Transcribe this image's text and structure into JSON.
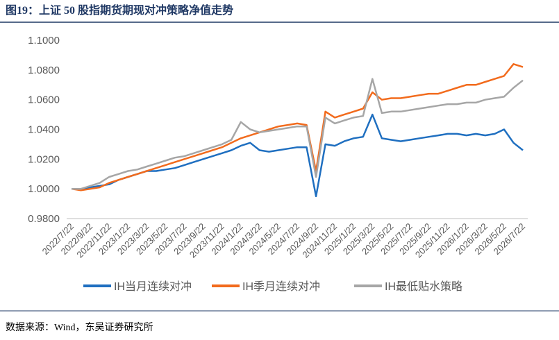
{
  "chart_data": {
    "type": "line",
    "title": "图19：上证 50 股指期货期现对冲策略净值走势",
    "source": "数据来源：Wind，东吴证券研究所",
    "categories": [
      "2022/7/22",
      null,
      "2022/9/22",
      null,
      "2022/11/22",
      null,
      "2023/1/22",
      null,
      "2023/3/22",
      null,
      "2023/5/22",
      null,
      "2023/7/22",
      null,
      "2023/9/22",
      null,
      "2023/11/22",
      null,
      "2024/1/22",
      null,
      "2024/3/22",
      null,
      "2024/5/22",
      null,
      "2024/7/22",
      null,
      "2024/9/22",
      null,
      "2024/11/22",
      null,
      "2025/1/22",
      null,
      "2025/3/22",
      null,
      "2025/5/22",
      null,
      "2025/7/22",
      null,
      "2025/9/22",
      null,
      "2025/11/22",
      null,
      "2026/1/22",
      null,
      "2026/3/22",
      null,
      "2026/5/22",
      null,
      "2026/7/22"
    ],
    "series": [
      {
        "name": "IH当月连续对冲",
        "color": "#1f6fc0",
        "values": [
          1.0,
          1.0,
          1.001,
          1.002,
          1.003,
          1.006,
          1.008,
          1.01,
          1.012,
          1.012,
          1.013,
          1.014,
          1.016,
          1.018,
          1.02,
          1.022,
          1.024,
          1.026,
          1.029,
          1.031,
          1.026,
          1.025,
          1.026,
          1.027,
          1.028,
          1.028,
          0.995,
          1.03,
          1.029,
          1.032,
          1.034,
          1.035,
          1.05,
          1.034,
          1.033,
          1.032,
          1.033,
          1.034,
          1.035,
          1.036,
          1.037,
          1.037,
          1.036,
          1.037,
          1.036,
          1.037,
          1.04,
          1.031,
          1.026
        ]
      },
      {
        "name": "IH季月连续对冲",
        "color": "#f26b1d",
        "values": [
          1.0,
          0.999,
          1.0,
          1.001,
          1.004,
          1.006,
          1.008,
          1.01,
          1.012,
          1.014,
          1.016,
          1.018,
          1.02,
          1.022,
          1.024,
          1.026,
          1.028,
          1.031,
          1.034,
          1.036,
          1.038,
          1.04,
          1.042,
          1.043,
          1.044,
          1.043,
          1.012,
          1.052,
          1.048,
          1.05,
          1.052,
          1.054,
          1.065,
          1.06,
          1.061,
          1.061,
          1.062,
          1.063,
          1.064,
          1.064,
          1.066,
          1.068,
          1.07,
          1.07,
          1.072,
          1.074,
          1.076,
          1.084,
          1.082
        ]
      },
      {
        "name": "IH最低贴水策略",
        "color": "#a6a6a6",
        "values": [
          1.0,
          1.0,
          1.002,
          1.004,
          1.008,
          1.01,
          1.012,
          1.013,
          1.015,
          1.017,
          1.019,
          1.021,
          1.022,
          1.024,
          1.026,
          1.028,
          1.03,
          1.033,
          1.045,
          1.04,
          1.038,
          1.039,
          1.04,
          1.041,
          1.042,
          1.042,
          1.008,
          1.048,
          1.044,
          1.046,
          1.048,
          1.049,
          1.074,
          1.051,
          1.052,
          1.052,
          1.053,
          1.054,
          1.055,
          1.056,
          1.057,
          1.057,
          1.058,
          1.058,
          1.06,
          1.061,
          1.062,
          1.068,
          1.073
        ]
      }
    ],
    "ylim": [
      0.98,
      1.1
    ],
    "yticks": [
      {
        "value": 0.98,
        "label": "0.9800"
      },
      {
        "value": 1.0,
        "label": "1.0000"
      },
      {
        "value": 1.02,
        "label": "1.0200"
      },
      {
        "value": 1.04,
        "label": "1.0400"
      },
      {
        "value": 1.06,
        "label": "1.0600"
      },
      {
        "value": 1.08,
        "label": "1.0800"
      },
      {
        "value": 1.1,
        "label": "1.1000"
      }
    ],
    "grid": false
  }
}
